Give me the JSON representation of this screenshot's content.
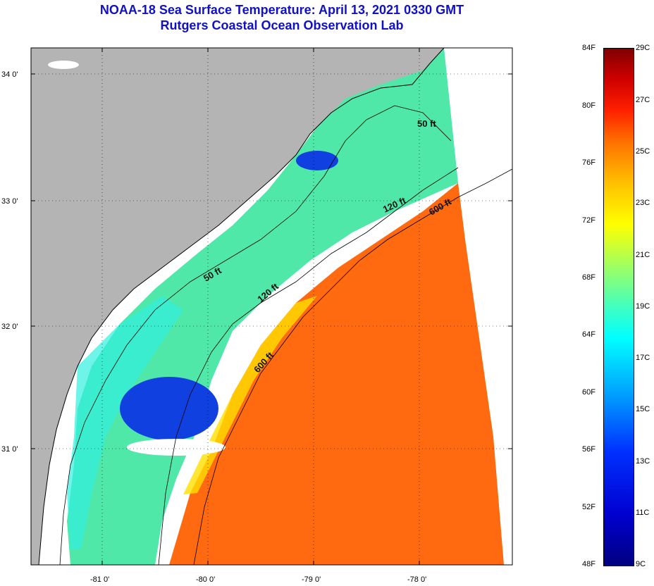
{
  "title": {
    "line1": "NOAA-18 Sea Surface Temperature:  April 13, 2021 0330 GMT",
    "line2": "Rutgers Coastal Ocean Observation Lab"
  },
  "map": {
    "lat_labels": [
      "34 0'",
      "33 0'",
      "32 0'",
      "31 0'"
    ],
    "lon_labels": [
      "-81 0'",
      "-80 0'",
      "-79 0'",
      "-78 0'"
    ],
    "isobath_labels": [
      "50 ft",
      "50 ft",
      "120 ft",
      "120 ft",
      "600 ft",
      "600 ft"
    ],
    "colors": {
      "land": "#b4b4b4",
      "no_data": "#ffffff",
      "shelf_water": "#50e8a8",
      "gulf_stream": "#ff6a10"
    }
  },
  "colorbar": {
    "fahrenheit_labels": [
      "84F",
      "80F",
      "76F",
      "72F",
      "68F",
      "64F",
      "60F",
      "56F",
      "52F",
      "48F"
    ],
    "celsius_labels": [
      "29C",
      "27C",
      "25C",
      "23C",
      "21C",
      "19C",
      "17C",
      "15C",
      "13C",
      "11C",
      "9C"
    ]
  }
}
